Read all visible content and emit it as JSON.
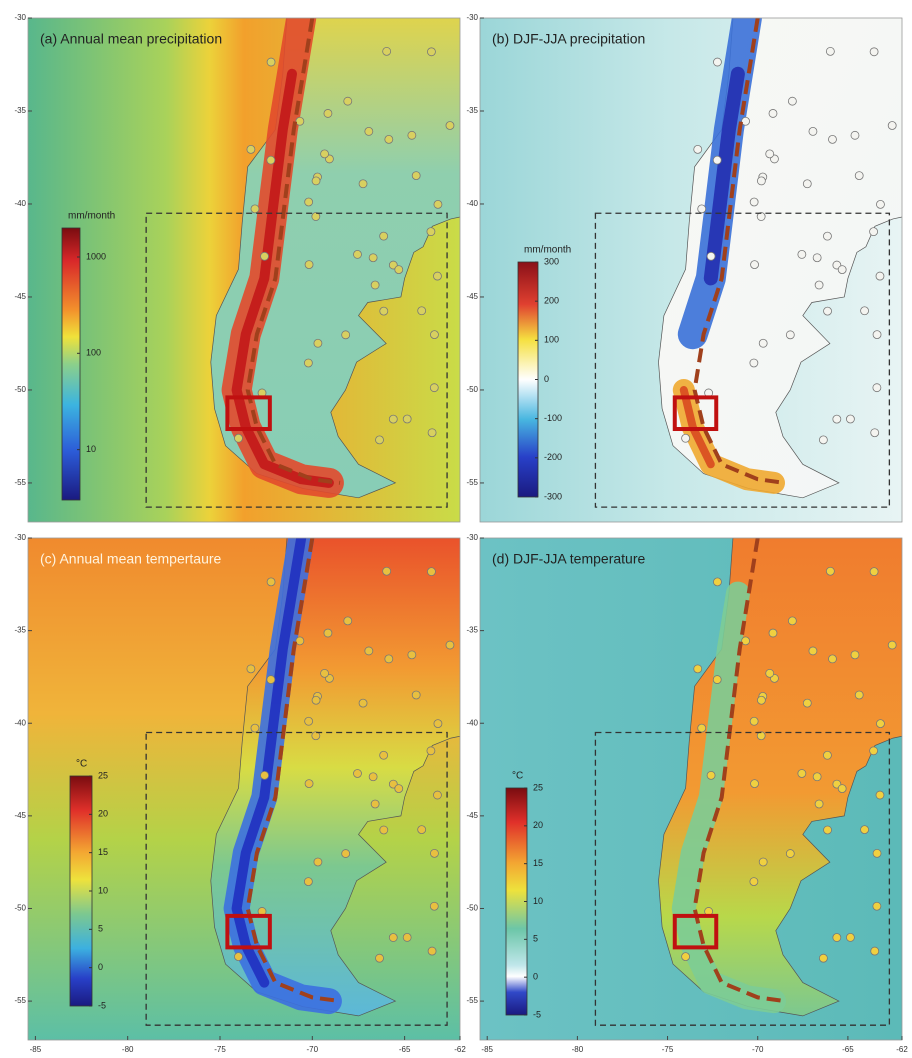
{
  "figure": {
    "xlim": [
      -85.4,
      -62
    ],
    "ylim": [
      -30,
      -57.1
    ],
    "panels": [
      {
        "label": "(a) Annual mean precipitation",
        "yticks": [
          -30,
          -35,
          -40,
          -45,
          -50,
          -55
        ],
        "colorbar": {
          "unit": "mm/month",
          "ticks": [
            1000,
            100,
            10
          ],
          "lim": [
            3,
            2000
          ],
          "log": true
        }
      },
      {
        "label": "(b) DJF-JJA precipitation",
        "yticks": [
          -30,
          -35,
          -40,
          -45,
          -50,
          -55
        ],
        "colorbar": {
          "unit": "mm/month",
          "ticks": [
            300,
            200,
            100,
            0,
            -100,
            -200,
            -300
          ],
          "lim": [
            -300,
            300
          ],
          "log": false
        }
      },
      {
        "label": "(c) Annual mean tempertaure",
        "yticks": [
          -30,
          -35,
          -40,
          -45,
          -50,
          -55
        ],
        "xticks": [
          -85,
          -80,
          -75,
          -70,
          -65,
          -62
        ],
        "colorbar": {
          "unit": "°C",
          "ticks": [
            25,
            20,
            15,
            10,
            5,
            0,
            -5
          ],
          "lim": [
            -5,
            25
          ],
          "log": false
        }
      },
      {
        "label": "(d) DJF-JJA temperature",
        "yticks": [
          -30,
          -35,
          -40,
          -45,
          -50,
          -55
        ],
        "xticks": [
          -85,
          -80,
          -75,
          -70,
          -65,
          -62
        ],
        "colorbar": {
          "unit": "°C",
          "ticks": [
            25,
            20,
            15,
            10,
            5,
            0,
            -5
          ],
          "lim": [
            -5,
            25
          ],
          "log": false
        }
      }
    ]
  }
}
